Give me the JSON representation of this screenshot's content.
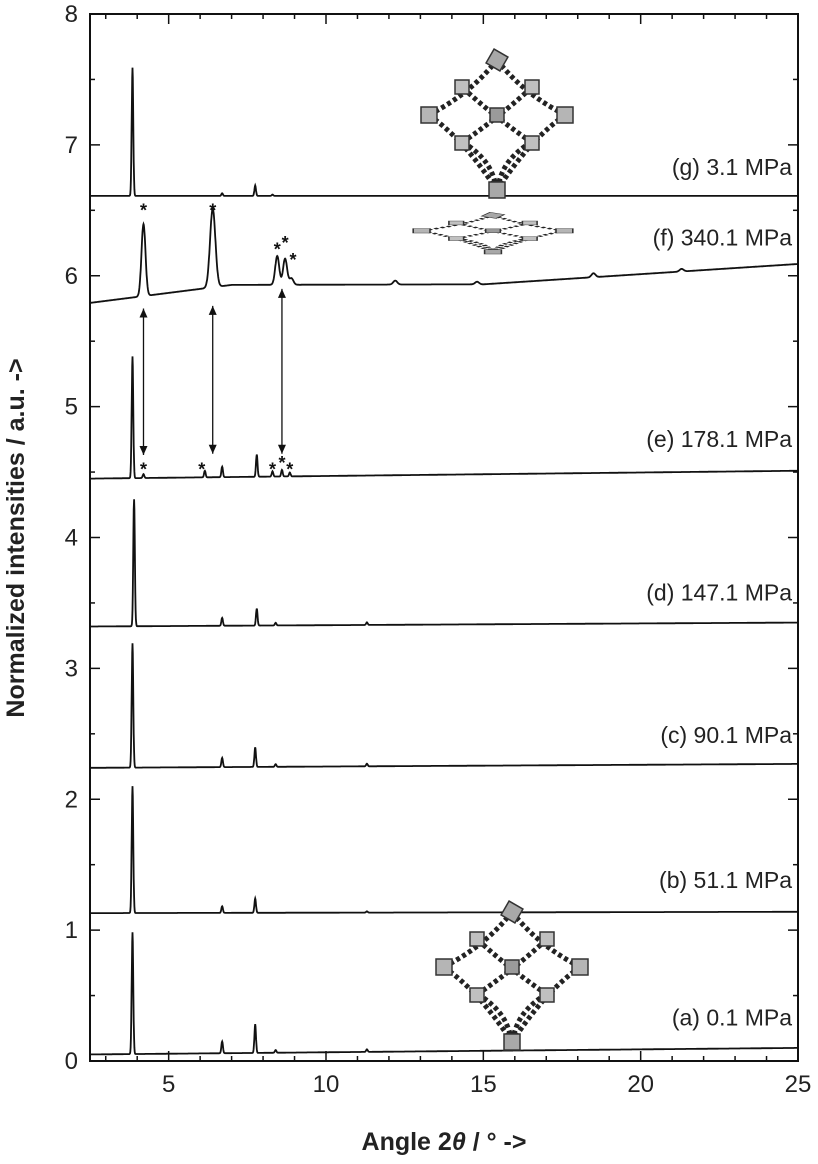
{
  "chart_data": {
    "type": "line",
    "xlabel_prefix": "Angle 2",
    "xlabel_symbol": "θ",
    "xlabel_suffix": " / ° ->",
    "ylabel": "Normalized intensities / a.u. ->",
    "xlim": [
      2.5,
      25
    ],
    "ylim": [
      0,
      8
    ],
    "x_ticks": [
      5,
      10,
      15,
      20,
      25
    ],
    "y_ticks": [
      0,
      1,
      2,
      3,
      4,
      5,
      6,
      7,
      8
    ],
    "grid": false,
    "legend": "none",
    "series": [
      {
        "name": "(a) 0.1 MPa",
        "baseline_start": 0.05,
        "baseline_end": 0.1,
        "peaks": [
          [
            3.85,
            0.93
          ],
          [
            6.7,
            0.09
          ],
          [
            7.75,
            0.22
          ],
          [
            8.4,
            0.02
          ],
          [
            11.3,
            0.02
          ]
        ],
        "label_y": 0.27
      },
      {
        "name": "(b) 51.1 MPa",
        "baseline_start": 1.13,
        "baseline_end": 1.14,
        "peaks": [
          [
            3.85,
            0.97
          ],
          [
            6.7,
            0.05
          ],
          [
            7.75,
            0.11
          ],
          [
            11.3,
            0.01
          ]
        ],
        "label_y": 1.32
      },
      {
        "name": "(c) 90.1 MPa",
        "baseline_start": 2.24,
        "baseline_end": 2.27,
        "peaks": [
          [
            3.85,
            0.95
          ],
          [
            6.7,
            0.07
          ],
          [
            7.75,
            0.15
          ],
          [
            8.4,
            0.02
          ],
          [
            11.3,
            0.02
          ]
        ],
        "label_y": 2.43
      },
      {
        "name": "(d) 147.1 MPa",
        "baseline_start": 3.32,
        "baseline_end": 3.35,
        "peaks": [
          [
            3.9,
            0.97
          ],
          [
            6.7,
            0.06
          ],
          [
            7.8,
            0.13
          ],
          [
            8.4,
            0.02
          ],
          [
            11.3,
            0.02
          ]
        ],
        "label_y": 3.52
      },
      {
        "name": "(e) 178.1 MPa",
        "baseline_start": 4.45,
        "baseline_end": 4.51,
        "peaks": [
          [
            3.85,
            0.93
          ],
          [
            4.2,
            0.03
          ],
          [
            6.15,
            0.05
          ],
          [
            6.7,
            0.08
          ],
          [
            7.8,
            0.17
          ],
          [
            8.3,
            0.04
          ],
          [
            8.6,
            0.05
          ],
          [
            8.85,
            0.03
          ]
        ],
        "label_y": 4.69
      },
      {
        "name": "(f) 340.1 MPa",
        "baseline_start": 5.74,
        "baseline_end": 6.09,
        "peaks": [
          [
            4.2,
            0.55
          ],
          [
            6.4,
            0.6
          ],
          [
            8.45,
            0.22
          ],
          [
            8.7,
            0.2
          ],
          [
            8.9,
            0.05
          ],
          [
            12.2,
            0.03
          ],
          [
            14.8,
            0.02
          ],
          [
            18.5,
            0.03
          ],
          [
            21.3,
            0.02
          ]
        ],
        "label_y": 6.23,
        "star_x": [
          4.2,
          6.4,
          8.45,
          8.7,
          8.95
        ],
        "star_y": [
          6.5,
          6.5,
          6.2,
          6.25,
          6.12
        ]
      },
      {
        "name": "(g) 3.1 MPa",
        "baseline_start": 6.61,
        "baseline_end": 6.61,
        "peaks": [
          [
            3.85,
            0.98
          ],
          [
            6.7,
            0.02
          ],
          [
            7.75,
            0.08
          ],
          [
            8.3,
            0.01
          ]
        ],
        "label_y": 6.77
      }
    ],
    "stars_e": {
      "x": [
        4.2,
        6.05,
        8.3,
        8.6,
        8.85
      ],
      "y": [
        4.55,
        4.55,
        4.55,
        4.6,
        4.55
      ]
    },
    "arrows": [
      {
        "x": 4.2,
        "from": 5.75,
        "to": 4.63
      },
      {
        "x": 6.4,
        "from": 5.77,
        "to": 4.64
      },
      {
        "x": 8.6,
        "from": 5.9,
        "to": 4.64
      }
    ],
    "star_symbol": "*"
  }
}
